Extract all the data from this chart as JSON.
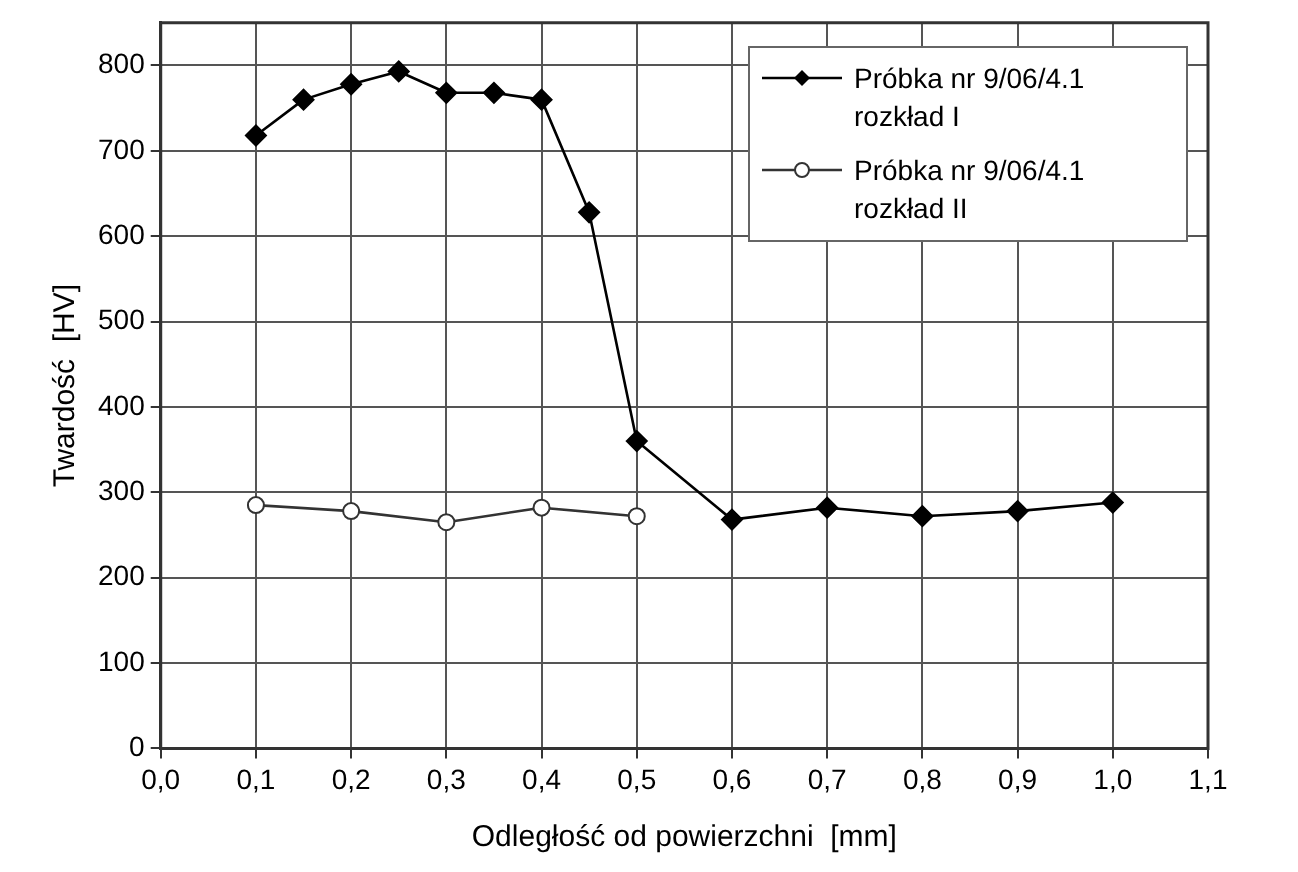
{
  "chart_data": {
    "type": "line",
    "xlabel": "Odległość od powierzchni  [mm]",
    "ylabel": "Twardość  [HV]",
    "xlim": [
      0,
      1.1
    ],
    "xticks": [
      {
        "value": 0,
        "label": "0,0"
      },
      {
        "value": 0.1,
        "label": "0,1"
      },
      {
        "value": 0.2,
        "label": "0,2"
      },
      {
        "value": 0.3,
        "label": "0,3"
      },
      {
        "value": 0.4,
        "label": "0,4"
      },
      {
        "value": 0.5,
        "label": "0,5"
      },
      {
        "value": 0.6,
        "label": "0,6"
      },
      {
        "value": 0.7,
        "label": "0,7"
      },
      {
        "value": 0.8,
        "label": "0,8"
      },
      {
        "value": 0.9,
        "label": "0,9"
      },
      {
        "value": 1,
        "label": "1,0"
      },
      {
        "value": 1.1,
        "label": "1,1"
      }
    ],
    "ylim": [
      0,
      850
    ],
    "yticks": [
      0,
      100,
      200,
      300,
      400,
      500,
      600,
      700,
      800
    ],
    "grid": true,
    "legend": "top right",
    "series": [
      {
        "name": "Próbka nr 9/06/4.1 rozkład I",
        "color": "#000000",
        "marker": "diamond",
        "x": [
          0.1,
          0.15,
          0.2,
          0.25,
          0.3,
          0.35,
          0.4,
          0.45,
          0.5,
          0.6,
          0.7,
          0.8,
          0.9,
          1.0
        ],
        "values": [
          718,
          760,
          778,
          793,
          768,
          768,
          760,
          628,
          360,
          268,
          282,
          272,
          278,
          288
        ]
      },
      {
        "name": "Próbka nr 9/06/4.1 rozkład II",
        "color": "#333333",
        "marker": "circle",
        "x": [
          0.1,
          0.2,
          0.3,
          0.4,
          0.5
        ],
        "values": [
          285,
          278,
          265,
          282,
          272
        ]
      }
    ]
  }
}
